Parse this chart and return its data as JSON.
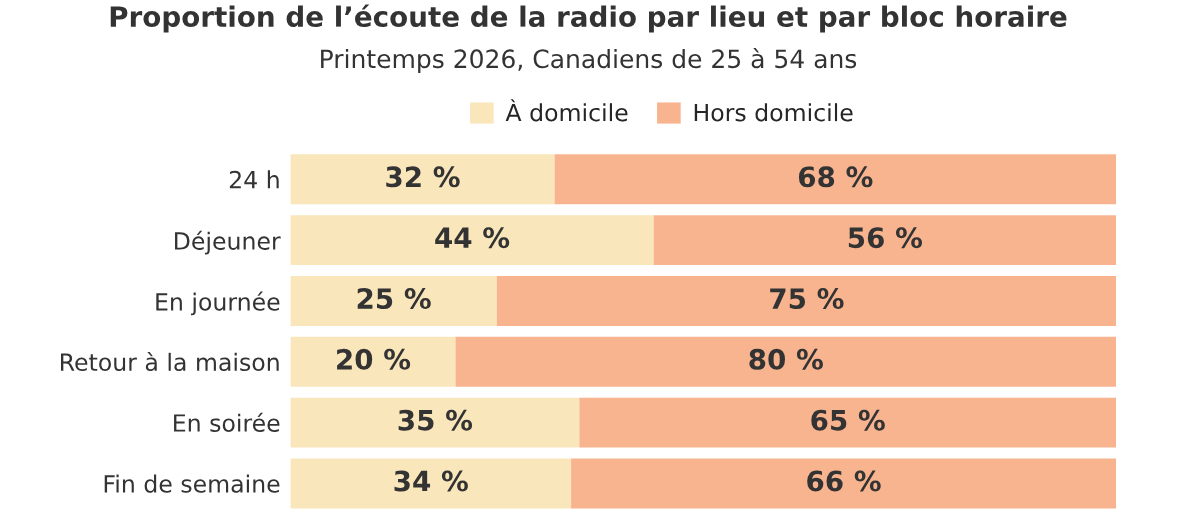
{
  "chart_data": {
    "type": "bar",
    "orientation": "horizontal",
    "stacked": true,
    "title": "Proportion de l’écoute de la radio par lieu et par bloc horaire",
    "subtitle": "Printemps 2026, Canadiens de 25 à 54 ans",
    "categories": [
      "24 h",
      "Déjeuner",
      "En journée",
      "Retour à la maison",
      "En soirée",
      "Fin de semaine"
    ],
    "series": [
      {
        "name": "À domicile",
        "color": "#fae6bb",
        "values": [
          32,
          44,
          25,
          20,
          35,
          34
        ],
        "value_labels": [
          "32 %",
          "44 %",
          "25 %",
          "20 %",
          "35 %",
          "34 %"
        ]
      },
      {
        "name": "Hors domicile",
        "color": "#f7b48f",
        "values": [
          68,
          56,
          75,
          80,
          65,
          66
        ],
        "value_labels": [
          "68 %",
          "56 %",
          "75 %",
          "80 %",
          "65 %",
          "66 %"
        ]
      }
    ],
    "legend": "top",
    "grid": false
  }
}
